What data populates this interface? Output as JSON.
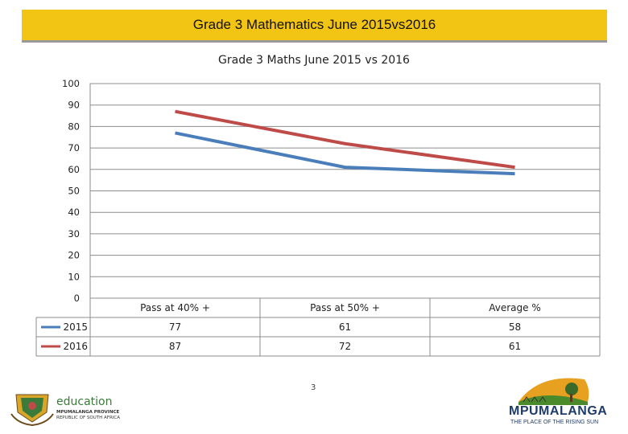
{
  "header": {
    "title": "Grade 3 Mathematics June 2015vs2016"
  },
  "footer": {
    "page_number": "3",
    "left_logo_text": "education",
    "left_logo_sub1": "MPUMALANGA PROVINCE",
    "left_logo_sub2": "REPUBLIC OF SOUTH AFRICA",
    "right_logo_name": "MPUMALANGA",
    "right_logo_tag": "THE PLACE OF THE RISING SUN"
  },
  "colors": {
    "header_bg": "#f2c414",
    "series_2015": "#4a7ebb",
    "series_2016": "#be4b48",
    "grid": "#8c8c8c"
  },
  "chart_data": {
    "type": "line",
    "title": "Grade 3 Maths June 2015 vs 2016",
    "categories": [
      "Pass at 40% +",
      "Pass at 50% +",
      "Average %"
    ],
    "series": [
      {
        "name": "2015",
        "values": [
          77,
          61,
          58
        ]
      },
      {
        "name": "2016",
        "values": [
          87,
          72,
          61
        ]
      }
    ],
    "table_values": [
      [
        "77",
        "61",
        "58"
      ],
      [
        "87",
        "72",
        "61"
      ]
    ],
    "yticks": [
      "0",
      "10",
      "20",
      "30",
      "40",
      "50",
      "60",
      "70",
      "80",
      "90",
      "100"
    ],
    "ylim": [
      0,
      100
    ],
    "grid": true,
    "legend": "data-table"
  }
}
